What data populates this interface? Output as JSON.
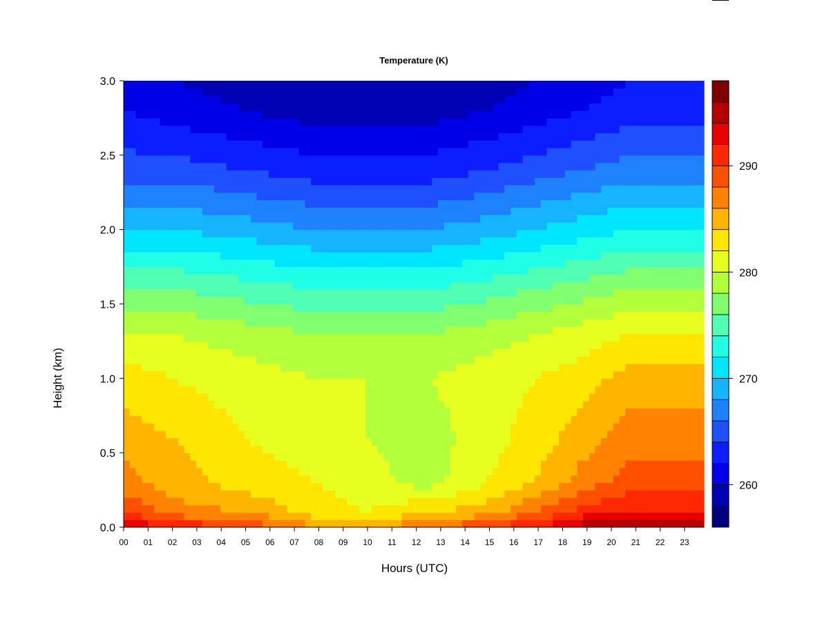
{
  "chart_data": {
    "type": "heatmap",
    "title": "Temperature (K)",
    "xlabel": "Hours (UTC)",
    "ylabel": "Height (km)",
    "x_ticks": [
      "00",
      "01",
      "02",
      "03",
      "04",
      "05",
      "06",
      "07",
      "08",
      "09",
      "10",
      "11",
      "12",
      "13",
      "14",
      "15",
      "16",
      "17",
      "18",
      "19",
      "20",
      "21",
      "22",
      "23"
    ],
    "xlim": [
      0,
      24
    ],
    "y_ticks": [
      "0.0",
      "0.5",
      "1.0",
      "1.5",
      "2.0",
      "2.5",
      "3.0"
    ],
    "ylim": [
      0,
      3
    ],
    "colorbar": {
      "ticks": [
        "260",
        "270",
        "280",
        "290"
      ],
      "range": [
        256,
        298
      ],
      "step": 2,
      "colors": [
        "#00007f",
        "#0000b4",
        "#0000e6",
        "#0a1eff",
        "#1e50ff",
        "#1e82ff",
        "#14b4ff",
        "#00e6ff",
        "#1effe6",
        "#50ffb4",
        "#82ff6e",
        "#b4ff3c",
        "#e6ff1e",
        "#ffe600",
        "#ffb400",
        "#ff8200",
        "#ff5000",
        "#ff2800",
        "#e60000",
        "#b40000",
        "#7f0000"
      ]
    },
    "grid": false,
    "series": [
      {
        "hours": 0,
        "temperature_profile": [
          [
            0.0,
            294
          ],
          [
            0.1,
            290
          ],
          [
            0.3,
            287
          ],
          [
            0.6,
            285
          ],
          [
            1.0,
            283
          ],
          [
            1.3,
            280
          ],
          [
            1.6,
            276
          ],
          [
            2.0,
            270
          ],
          [
            2.4,
            265
          ],
          [
            2.8,
            262
          ],
          [
            3.0,
            261
          ]
        ]
      },
      {
        "hours": 2,
        "temperature_profile": [
          [
            0.0,
            292
          ],
          [
            0.1,
            287
          ],
          [
            0.3,
            285
          ],
          [
            0.6,
            284
          ],
          [
            1.0,
            282
          ],
          [
            1.3,
            280
          ],
          [
            1.6,
            276
          ],
          [
            2.0,
            270
          ],
          [
            2.4,
            265
          ],
          [
            2.8,
            261
          ],
          [
            3.0,
            260
          ]
        ]
      },
      {
        "hours": 5,
        "temperature_profile": [
          [
            0.0,
            290
          ],
          [
            0.1,
            286
          ],
          [
            0.3,
            283
          ],
          [
            0.6,
            282
          ],
          [
            1.0,
            281
          ],
          [
            1.3,
            279
          ],
          [
            1.6,
            275
          ],
          [
            2.0,
            269
          ],
          [
            2.4,
            264
          ],
          [
            2.8,
            260
          ],
          [
            3.0,
            259
          ]
        ]
      },
      {
        "hours": 8,
        "temperature_profile": [
          [
            0.0,
            286
          ],
          [
            0.1,
            283
          ],
          [
            0.3,
            282
          ],
          [
            0.6,
            281
          ],
          [
            1.0,
            280
          ],
          [
            1.3,
            278
          ],
          [
            1.6,
            274
          ],
          [
            2.0,
            268
          ],
          [
            2.4,
            263
          ],
          [
            2.8,
            259
          ],
          [
            3.0,
            258
          ]
        ]
      },
      {
        "hours": 10,
        "temperature_profile": [
          [
            0.0,
            285
          ],
          [
            0.1,
            282
          ],
          [
            0.3,
            281
          ],
          [
            0.6,
            280
          ],
          [
            1.0,
            280
          ],
          [
            1.3,
            278
          ],
          [
            1.6,
            274
          ],
          [
            2.0,
            268
          ],
          [
            2.4,
            263
          ],
          [
            2.8,
            259
          ],
          [
            3.0,
            258
          ]
        ]
      },
      {
        "hours": 12.5,
        "temperature_profile": [
          [
            0.0,
            288
          ],
          [
            0.1,
            284
          ],
          [
            0.3,
            279
          ],
          [
            0.6,
            279
          ],
          [
            1.0,
            280
          ],
          [
            1.3,
            278
          ],
          [
            1.6,
            274
          ],
          [
            2.0,
            268
          ],
          [
            2.4,
            263
          ],
          [
            2.8,
            259
          ],
          [
            3.0,
            258
          ]
        ]
      },
      {
        "hours": 15,
        "temperature_profile": [
          [
            0.0,
            290
          ],
          [
            0.1,
            285
          ],
          [
            0.3,
            282
          ],
          [
            0.6,
            281
          ],
          [
            1.0,
            281
          ],
          [
            1.3,
            279
          ],
          [
            1.6,
            275
          ],
          [
            2.0,
            269
          ],
          [
            2.4,
            264
          ],
          [
            2.8,
            260
          ],
          [
            3.0,
            259
          ]
        ]
      },
      {
        "hours": 17,
        "temperature_profile": [
          [
            0.0,
            292
          ],
          [
            0.1,
            288
          ],
          [
            0.3,
            284
          ],
          [
            0.6,
            283
          ],
          [
            1.0,
            282
          ],
          [
            1.3,
            280
          ],
          [
            1.6,
            276
          ],
          [
            2.0,
            270
          ],
          [
            2.4,
            265
          ],
          [
            2.8,
            261
          ],
          [
            3.0,
            260
          ]
        ]
      },
      {
        "hours": 19,
        "temperature_profile": [
          [
            0.0,
            295
          ],
          [
            0.1,
            291
          ],
          [
            0.3,
            287
          ],
          [
            0.6,
            285
          ],
          [
            1.0,
            283
          ],
          [
            1.3,
            281
          ],
          [
            1.6,
            277
          ],
          [
            2.0,
            271
          ],
          [
            2.4,
            266
          ],
          [
            2.8,
            262
          ],
          [
            3.0,
            261
          ]
        ]
      },
      {
        "hours": 21,
        "temperature_profile": [
          [
            0.0,
            296
          ],
          [
            0.1,
            292
          ],
          [
            0.3,
            289
          ],
          [
            0.6,
            287
          ],
          [
            1.0,
            285
          ],
          [
            1.3,
            282
          ],
          [
            1.6,
            278
          ],
          [
            2.0,
            272
          ],
          [
            2.4,
            267
          ],
          [
            2.8,
            263
          ],
          [
            3.0,
            262
          ]
        ]
      },
      {
        "hours": 24,
        "temperature_profile": [
          [
            0.0,
            295
          ],
          [
            0.1,
            292
          ],
          [
            0.3,
            289
          ],
          [
            0.6,
            287
          ],
          [
            1.0,
            285
          ],
          [
            1.3,
            282
          ],
          [
            1.6,
            278
          ],
          [
            2.0,
            272
          ],
          [
            2.4,
            267
          ],
          [
            2.8,
            263
          ],
          [
            3.0,
            262
          ]
        ]
      }
    ]
  }
}
